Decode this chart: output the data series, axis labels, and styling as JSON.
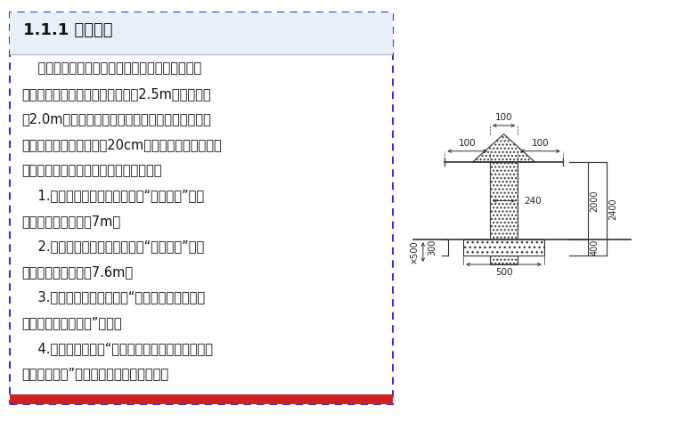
{
  "title": "1.1.1 现场围挡",
  "title_fontsize": 13,
  "body_fontsize": 10.5,
  "background_color": "#ffffff",
  "border_color": "#3333cc",
  "text_color": "#111111",
  "left_panel_text": [
    "    围墙可用砖筑式，夹芜彩钉板式或波纹彩钉板。",
    "市区主要路段临街围墙高度不低于2.5m，其余不低",
    "于2.0m。市区主要路段临街面使用夹芜板或波纹彩",
    "钉板的，必须砖筑不小于20cm的基础。夹芜板用槽钉",
    "做支架，工字钉做立柱。围墙标志组合：",
    "    1.砖筑式：主要图案为企标加“南通二建”，为",
    "白底蓝字，每组间陨7m。",
    "    2.金属式：主要图案为企标加“南通二建”，为",
    "白底蓝字，每组间陨7.6m。",
    "    3.临街面或醒目位置应设“我们在此施工，给您",
    "带来不便，敬请谅解”标语。",
    "    4.靠近大门左侧为“建设单位、监理单位、设计单",
    "位、施工单位”全称，右侧为工程效果图。"
  ]
}
